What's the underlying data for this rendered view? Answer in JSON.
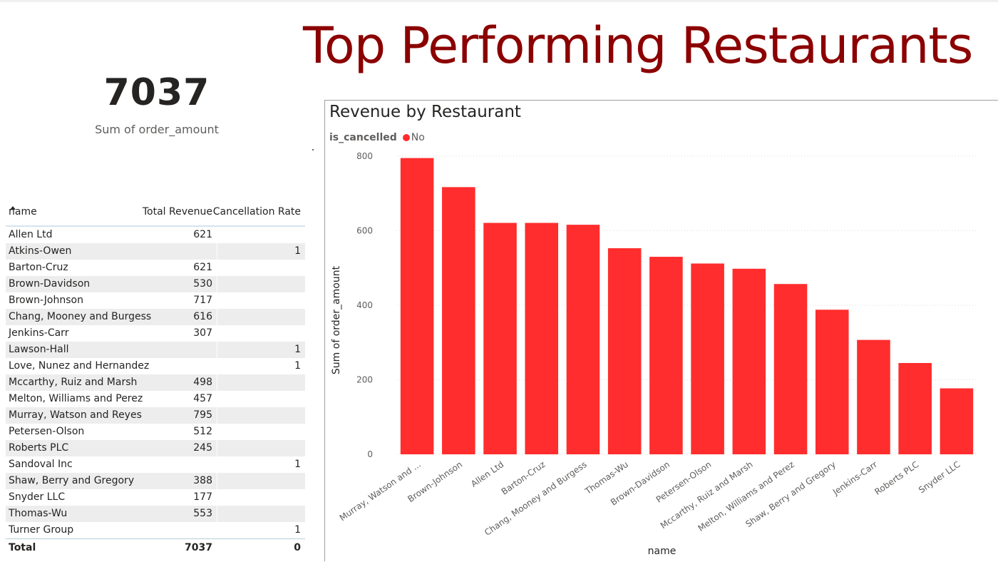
{
  "page": {
    "title": "Top Performing Restaurants"
  },
  "kpi": {
    "value": "7037",
    "label": "Sum of order_amount"
  },
  "table": {
    "headers": {
      "name": "name",
      "revenue": "Total Revenue",
      "cancellation": "Cancellation Rate"
    },
    "rows": [
      {
        "name": "Allen Ltd",
        "revenue": "621",
        "cancellation": ""
      },
      {
        "name": "Atkins-Owen",
        "revenue": "",
        "cancellation": "1"
      },
      {
        "name": "Barton-Cruz",
        "revenue": "621",
        "cancellation": ""
      },
      {
        "name": "Brown-Davidson",
        "revenue": "530",
        "cancellation": ""
      },
      {
        "name": "Brown-Johnson",
        "revenue": "717",
        "cancellation": ""
      },
      {
        "name": "Chang, Mooney and Burgess",
        "revenue": "616",
        "cancellation": ""
      },
      {
        "name": "Jenkins-Carr",
        "revenue": "307",
        "cancellation": ""
      },
      {
        "name": "Lawson-Hall",
        "revenue": "",
        "cancellation": "1"
      },
      {
        "name": "Love, Nunez and Hernandez",
        "revenue": "",
        "cancellation": "1"
      },
      {
        "name": "Mccarthy, Ruiz and Marsh",
        "revenue": "498",
        "cancellation": ""
      },
      {
        "name": "Melton, Williams and Perez",
        "revenue": "457",
        "cancellation": ""
      },
      {
        "name": "Murray, Watson and Reyes",
        "revenue": "795",
        "cancellation": ""
      },
      {
        "name": "Petersen-Olson",
        "revenue": "512",
        "cancellation": ""
      },
      {
        "name": "Roberts PLC",
        "revenue": "245",
        "cancellation": ""
      },
      {
        "name": "Sandoval Inc",
        "revenue": "",
        "cancellation": "1"
      },
      {
        "name": "Shaw, Berry and Gregory",
        "revenue": "388",
        "cancellation": ""
      },
      {
        "name": "Snyder LLC",
        "revenue": "177",
        "cancellation": ""
      },
      {
        "name": "Thomas-Wu",
        "revenue": "553",
        "cancellation": ""
      },
      {
        "name": "Turner Group",
        "revenue": "",
        "cancellation": "1"
      }
    ],
    "total": {
      "label": "Total",
      "revenue": "7037",
      "cancellation": "0"
    }
  },
  "chart_data": {
    "type": "bar",
    "title": "Revenue by Restaurant",
    "legend": {
      "title": "is_cancelled",
      "items": [
        "No"
      ],
      "placement": "top-left"
    },
    "categories": [
      "Murray, Watson and ...",
      "Brown-Johnson",
      "Allen Ltd",
      "Barton-Cruz",
      "Chang, Mooney and Burgess",
      "Thomas-Wu",
      "Brown-Davidson",
      "Petersen-Olson",
      "Mccarthy, Ruiz and Marsh",
      "Melton, Williams and Perez",
      "Shaw, Berry and Gregory",
      "Jenkins-Carr",
      "Roberts PLC",
      "Snyder LLC"
    ],
    "series": [
      {
        "name": "No",
        "color": "#ff2d2d",
        "values": [
          795,
          717,
          621,
          621,
          616,
          553,
          530,
          512,
          498,
          457,
          388,
          307,
          245,
          177
        ]
      }
    ],
    "xlabel": "name",
    "ylabel": "Sum of order_amount",
    "ylim": [
      0,
      800
    ],
    "yticks": [
      0,
      200,
      400,
      600,
      800
    ],
    "grid": true
  }
}
